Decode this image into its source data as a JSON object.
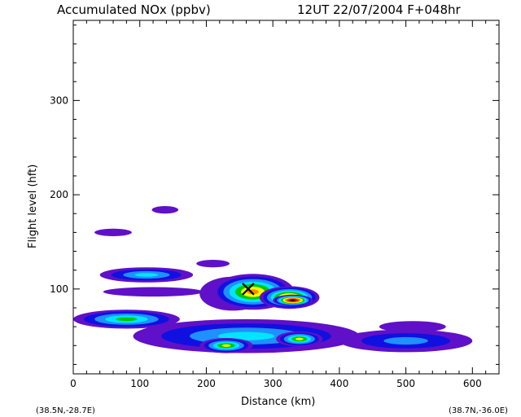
{
  "chart_data": {
    "type": "heatmap",
    "title": "Accumulated NOx  (ppbv)",
    "subtitle": "12UT 22/07/2004  F+048hr",
    "xlabel": "Distance  (km)",
    "ylabel": "Flight level  (hft)",
    "xlim": [
      0,
      640
    ],
    "ylim": [
      10,
      385
    ],
    "x_ticks": [
      0,
      100,
      200,
      300,
      400,
      500,
      600
    ],
    "y_ticks": [
      100,
      200,
      300
    ],
    "x_tick_labels": [
      "0",
      "100",
      "200",
      "300",
      "400",
      "500",
      "600"
    ],
    "y_tick_labels": [
      "100",
      "200",
      "300"
    ],
    "start_label": "(38.5N,-28.7E)",
    "end_label": "(38.7N,-36.0E)",
    "marker": {
      "symbol": "X",
      "x": 263,
      "y": 100
    },
    "colors": [
      "#6010c8",
      "#1010e0",
      "#1e90ff",
      "#00e5ff",
      "#00c800",
      "#ffff00",
      "#ff8c00",
      "#ff2000",
      "#a00000",
      "#000000"
    ],
    "blobs": [
      {
        "x": 110,
        "y": 115,
        "rx": 70,
        "ry": 8,
        "level": 3
      },
      {
        "x": 120,
        "y": 97,
        "rx": 75,
        "ry": 5,
        "level": 0
      },
      {
        "x": 240,
        "y": 95,
        "rx": 50,
        "ry": 18,
        "level": 1
      },
      {
        "x": 270,
        "y": 97,
        "rx": 62,
        "ry": 19,
        "level": 6
      },
      {
        "x": 325,
        "y": 91,
        "rx": 45,
        "ry": 12,
        "level": 7
      },
      {
        "x": 330,
        "y": 88,
        "rx": 30,
        "ry": 6,
        "level": 9
      },
      {
        "x": 80,
        "y": 68,
        "rx": 80,
        "ry": 10,
        "level": 4
      },
      {
        "x": 260,
        "y": 50,
        "rx": 170,
        "ry": 18,
        "level": 3
      },
      {
        "x": 230,
        "y": 40,
        "rx": 40,
        "ry": 8,
        "level": 5
      },
      {
        "x": 340,
        "y": 47,
        "rx": 35,
        "ry": 8,
        "level": 5
      },
      {
        "x": 500,
        "y": 45,
        "rx": 100,
        "ry": 12,
        "level": 2
      },
      {
        "x": 510,
        "y": 60,
        "rx": 50,
        "ry": 6,
        "level": 0
      },
      {
        "x": 210,
        "y": 127,
        "rx": 25,
        "ry": 4,
        "level": 0
      },
      {
        "x": 60,
        "y": 160,
        "rx": 28,
        "ry": 4,
        "level": 0
      },
      {
        "x": 138,
        "y": 184,
        "rx": 20,
        "ry": 4,
        "level": 0
      }
    ]
  }
}
